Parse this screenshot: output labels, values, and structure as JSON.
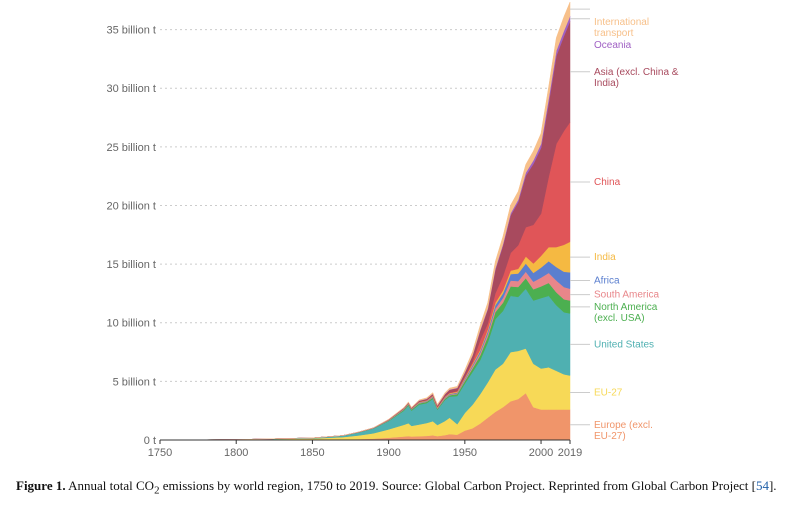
{
  "chart_data": {
    "type": "area",
    "stacked": true,
    "x": [
      1750,
      1800,
      1850,
      1870,
      1880,
      1890,
      1900,
      1910,
      1913,
      1915,
      1920,
      1925,
      1929,
      1932,
      1937,
      1940,
      1945,
      1950,
      1955,
      1960,
      1965,
      1970,
      1975,
      1980,
      1985,
      1990,
      1995,
      2000,
      2005,
      2010,
      2015,
      2019
    ],
    "series": [
      {
        "name": "Europe (excl.\nEU-27)",
        "color": "#f0956a",
        "values": [
          0,
          0.01,
          0.03,
          0.05,
          0.08,
          0.12,
          0.2,
          0.3,
          0.33,
          0.3,
          0.32,
          0.35,
          0.4,
          0.33,
          0.42,
          0.5,
          0.45,
          0.8,
          1.0,
          1.4,
          1.9,
          2.4,
          2.8,
          3.3,
          3.5,
          4.0,
          2.8,
          2.6,
          2.6,
          2.6,
          2.6,
          2.6
        ]
      },
      {
        "name": "EU-27",
        "color": "#f7d957",
        "values": [
          0,
          0.02,
          0.1,
          0.2,
          0.3,
          0.45,
          0.7,
          1.0,
          1.1,
          0.9,
          1.0,
          1.1,
          1.2,
          0.95,
          1.2,
          1.4,
          0.9,
          1.5,
          2.0,
          2.5,
          3.0,
          3.6,
          3.7,
          4.2,
          4.1,
          3.8,
          3.7,
          3.5,
          3.6,
          3.3,
          3.0,
          2.9
        ]
      },
      {
        "name": "United States",
        "color": "#4fb0b1",
        "values": [
          0,
          0,
          0.05,
          0.12,
          0.25,
          0.4,
          0.7,
          1.2,
          1.5,
          1.3,
          1.7,
          1.7,
          1.9,
          1.3,
          1.8,
          1.8,
          2.4,
          2.5,
          2.8,
          2.9,
          3.4,
          4.3,
          4.5,
          4.8,
          4.6,
          5.1,
          5.4,
          6.0,
          6.1,
          5.6,
          5.3,
          5.3
        ]
      },
      {
        "name": "North America\n(excl. USA)",
        "color": "#4caf50",
        "values": [
          0,
          0,
          0,
          0.01,
          0.02,
          0.03,
          0.05,
          0.08,
          0.1,
          0.09,
          0.1,
          0.11,
          0.12,
          0.09,
          0.11,
          0.12,
          0.17,
          0.22,
          0.3,
          0.4,
          0.5,
          0.6,
          0.7,
          0.8,
          0.85,
          0.9,
          0.95,
          1.0,
          1.1,
          1.1,
          1.1,
          1.1
        ]
      },
      {
        "name": "South America",
        "color": "#e8868a",
        "values": [
          0,
          0,
          0,
          0,
          0.01,
          0.01,
          0.02,
          0.03,
          0.03,
          0.03,
          0.04,
          0.04,
          0.05,
          0.04,
          0.05,
          0.05,
          0.06,
          0.1,
          0.15,
          0.2,
          0.25,
          0.3,
          0.4,
          0.5,
          0.5,
          0.55,
          0.65,
          0.75,
          0.85,
          1.0,
          1.05,
          1.0
        ]
      },
      {
        "name": "Africa",
        "color": "#5b7fcf",
        "values": [
          0,
          0,
          0,
          0,
          0,
          0.01,
          0.02,
          0.03,
          0.03,
          0.03,
          0.04,
          0.04,
          0.05,
          0.04,
          0.05,
          0.06,
          0.07,
          0.1,
          0.13,
          0.17,
          0.22,
          0.3,
          0.4,
          0.55,
          0.65,
          0.7,
          0.75,
          0.85,
          1.0,
          1.15,
          1.3,
          1.4
        ]
      },
      {
        "name": "India",
        "color": "#f5b942",
        "values": [
          0,
          0,
          0,
          0,
          0,
          0.01,
          0.02,
          0.03,
          0.03,
          0.03,
          0.04,
          0.04,
          0.05,
          0.04,
          0.05,
          0.06,
          0.07,
          0.08,
          0.1,
          0.12,
          0.15,
          0.2,
          0.25,
          0.3,
          0.4,
          0.6,
          0.8,
          1.0,
          1.2,
          1.7,
          2.3,
          2.6
        ]
      },
      {
        "name": "China",
        "color": "#e05558",
        "values": [
          0,
          0,
          0,
          0,
          0,
          0,
          0,
          0.01,
          0.01,
          0.01,
          0.02,
          0.02,
          0.03,
          0.03,
          0.04,
          0.04,
          0.05,
          0.08,
          0.2,
          0.8,
          0.5,
          0.8,
          1.2,
          1.5,
          2.0,
          2.5,
          3.3,
          3.6,
          6.0,
          8.8,
          9.7,
          10.2
        ]
      },
      {
        "name": "Asia (excl. China &\nIndia)",
        "color": "#a84a5e",
        "values": [
          0,
          0,
          0,
          0,
          0.01,
          0.01,
          0.03,
          0.05,
          0.06,
          0.05,
          0.08,
          0.1,
          0.12,
          0.12,
          0.18,
          0.25,
          0.25,
          0.35,
          0.5,
          0.8,
          1.2,
          2.0,
          2.6,
          3.2,
          3.7,
          4.4,
          5.2,
          5.6,
          6.3,
          7.5,
          8.1,
          8.6
        ]
      },
      {
        "name": "Oceania",
        "color": "#a061c4",
        "values": [
          0,
          0,
          0,
          0,
          0,
          0,
          0.01,
          0.01,
          0.01,
          0.01,
          0.02,
          0.02,
          0.02,
          0.02,
          0.03,
          0.03,
          0.03,
          0.04,
          0.05,
          0.07,
          0.09,
          0.12,
          0.15,
          0.18,
          0.2,
          0.25,
          0.3,
          0.35,
          0.4,
          0.45,
          0.45,
          0.45
        ]
      },
      {
        "name": "International\ntransport",
        "color": "#f7c08a",
        "values": [
          0,
          0,
          0,
          0,
          0,
          0.01,
          0.02,
          0.04,
          0.05,
          0.04,
          0.06,
          0.08,
          0.1,
          0.08,
          0.1,
          0.12,
          0.12,
          0.2,
          0.3,
          0.4,
          0.5,
          0.6,
          0.65,
          0.7,
          0.7,
          0.7,
          0.8,
          0.9,
          1.0,
          1.1,
          1.2,
          1.2
        ]
      }
    ],
    "xticks": [
      {
        "value": 1750,
        "label": "1750"
      },
      {
        "value": 1800,
        "label": "1800"
      },
      {
        "value": 1850,
        "label": "1850"
      },
      {
        "value": 1900,
        "label": "1900"
      },
      {
        "value": 1950,
        "label": "1950"
      },
      {
        "value": 2000,
        "label": "2000"
      },
      {
        "value": 2019,
        "label": "2019"
      }
    ],
    "yticks": [
      {
        "value": 0,
        "label": "0 t"
      },
      {
        "value": 5,
        "label": "5 billion t"
      },
      {
        "value": 10,
        "label": "10 billion t"
      },
      {
        "value": 15,
        "label": "15 billion t"
      },
      {
        "value": 20,
        "label": "20 billion t"
      },
      {
        "value": 25,
        "label": "25 billion t"
      },
      {
        "value": 30,
        "label": "30 billion t"
      },
      {
        "value": 35,
        "label": "35 billion t"
      }
    ],
    "xlim": [
      1750,
      2019
    ],
    "ylim": [
      0,
      36.5
    ],
    "grid": "horizontal-dotted",
    "legend": "right-inline"
  },
  "caption": {
    "label": "Figure 1.",
    "text_before": " Annual total CO",
    "subscript": "2",
    "text_after": " emissions by world region, 1750 to 2019. Source: Global Carbon Project. Reprinted from Global Carbon Project [",
    "reference": "54",
    "text_end": "]."
  }
}
